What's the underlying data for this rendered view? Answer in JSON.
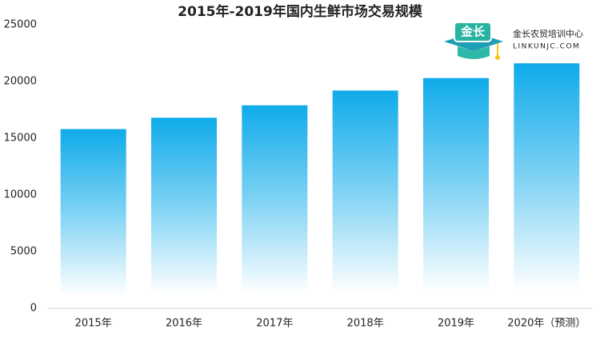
{
  "chart_data": {
    "type": "bar",
    "title": "2015年-2019年国内生鲜市场交易规模",
    "categories": [
      "2015年",
      "2016年",
      "2017年",
      "2018年",
      "2019年",
      "2020年（预测）"
    ],
    "values": [
      15800,
      16800,
      17900,
      19200,
      20300,
      21600
    ],
    "color": "#0fabea",
    "ylim": [
      0,
      25000
    ],
    "yticks": [
      0,
      5000,
      10000,
      15000,
      20000,
      25000
    ],
    "grid": false
  },
  "logo": {
    "badge": "金长",
    "name": "金长农贸培训中心",
    "url": "LINKUNJC.COM"
  }
}
